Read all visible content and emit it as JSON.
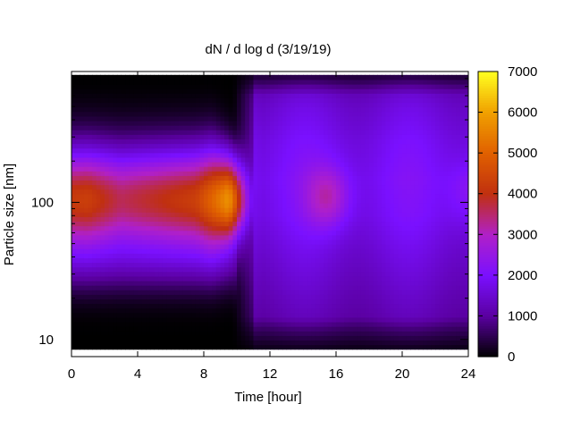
{
  "chart_data": {
    "type": "heatmap",
    "title": "dN / d log d (3/19/19)",
    "xlabel": "Time [hour]",
    "ylabel": "Particle size [nm]",
    "xlim": [
      0,
      24
    ],
    "ylim": [
      7.5,
      900
    ],
    "y_scale": "log",
    "x_ticks": [
      0,
      4,
      8,
      12,
      16,
      20,
      24
    ],
    "x_tick_labels": [
      "0",
      "4",
      "8",
      "12",
      "16",
      "20",
      "24"
    ],
    "y_ticks": [
      10,
      100
    ],
    "y_tick_labels": [
      "10",
      "100"
    ],
    "colorbar": {
      "min": 0,
      "max": 7000,
      "ticks": [
        0,
        1000,
        2000,
        3000,
        4000,
        5000,
        6000,
        7000
      ],
      "tick_labels": [
        "0",
        "1000",
        "2000",
        "3000",
        "4000",
        "5000",
        "6000",
        "7000"
      ],
      "colormap": [
        "#000000",
        "#5a00a0",
        "#7a10ff",
        "#b020c8",
        "#c03010",
        "#e06000",
        "#f0a000",
        "#ffff20"
      ]
    },
    "data_range_y": [
      8.5,
      850
    ],
    "features": [
      {
        "time": 1,
        "size_nm": 110,
        "value": 4300
      },
      {
        "time": 3,
        "size_nm": 110,
        "value": 3700
      },
      {
        "time": 5,
        "size_nm": 110,
        "value": 3900
      },
      {
        "time": 7.5,
        "size_nm": 110,
        "value": 4300
      },
      {
        "time": 9.5,
        "size_nm": 110,
        "value": 5800
      },
      {
        "time": 15.5,
        "size_nm": 110,
        "value": 3200
      },
      {
        "time": 24,
        "size_nm": 120,
        "value": 2500
      }
    ],
    "grid": false
  }
}
